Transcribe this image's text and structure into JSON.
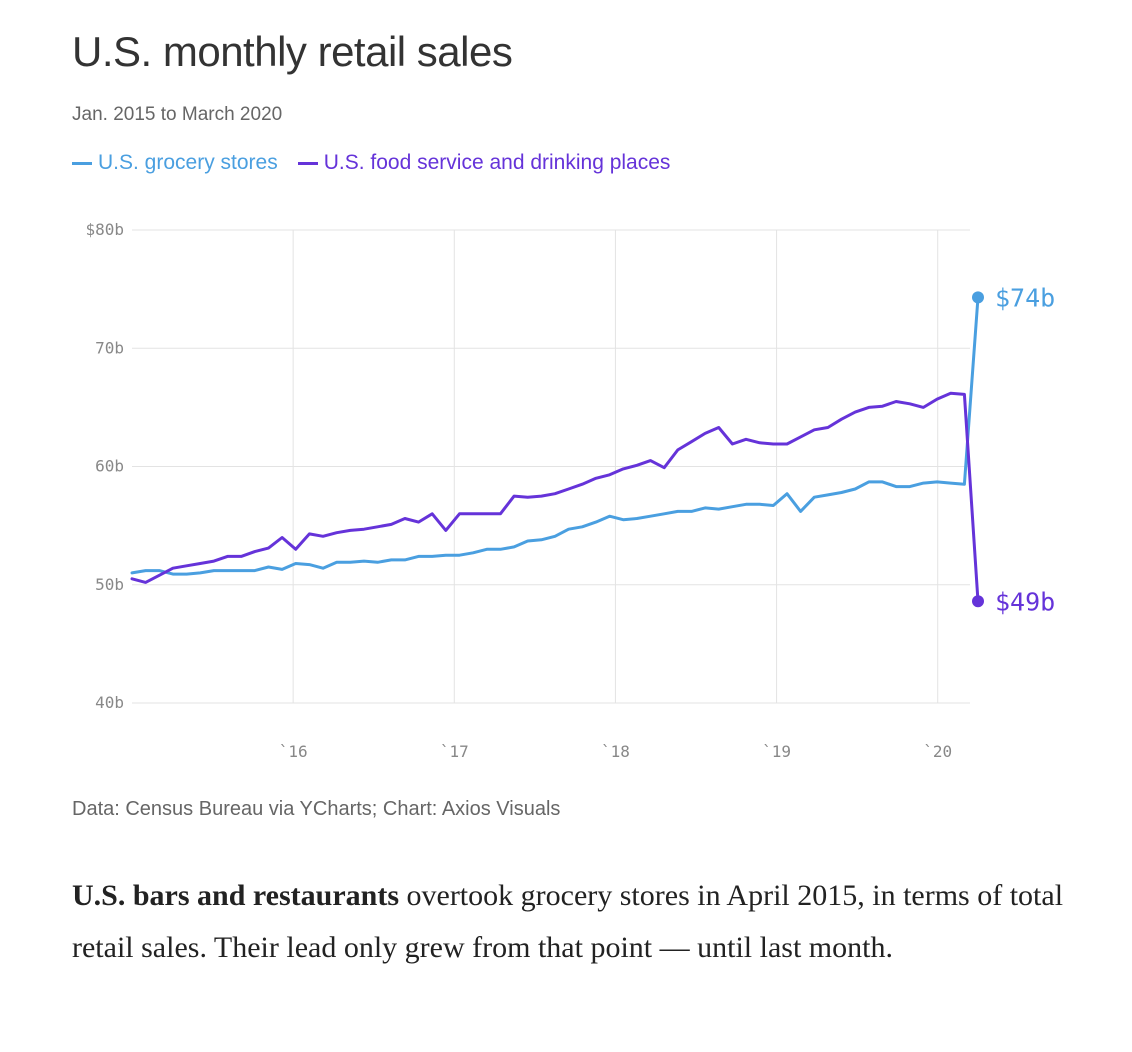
{
  "header": {
    "title": "U.S. monthly retail sales",
    "subtitle": "Jan. 2015 to March 2020"
  },
  "legend": {
    "grocery": "U.S. grocery stores",
    "food": "U.S. food service and drinking places"
  },
  "colors": {
    "grocery": "#4a9fe0",
    "food": "#6533d9",
    "grid": "#e3e3e3",
    "axis_text": "#888888"
  },
  "chart_data": {
    "type": "line",
    "title": "U.S. monthly retail sales",
    "subtitle": "Jan. 2015 to March 2020",
    "xlabel": "",
    "ylabel": "",
    "ylim": [
      40,
      80
    ],
    "xlim": [
      2015.0,
      2020.25
    ],
    "x_ticks": [
      {
        "value": 2016,
        "label": "`16"
      },
      {
        "value": 2017,
        "label": "`17"
      },
      {
        "value": 2018,
        "label": "`18"
      },
      {
        "value": 2019,
        "label": "`19"
      },
      {
        "value": 2020,
        "label": "`20"
      }
    ],
    "y_ticks": [
      {
        "value": 80,
        "label": "$80b"
      },
      {
        "value": 70,
        "label": "70b"
      },
      {
        "value": 60,
        "label": "60b"
      },
      {
        "value": 50,
        "label": "50b"
      },
      {
        "value": 40,
        "label": "40b"
      }
    ],
    "grid": true,
    "start": "Jan 2015",
    "end": "Mar 2020",
    "series": [
      {
        "name": "U.S. grocery stores",
        "color_key": "grocery",
        "end_label": "$74b",
        "values": [
          51.0,
          51.2,
          51.2,
          50.9,
          50.9,
          51.0,
          51.2,
          51.2,
          51.2,
          51.2,
          51.5,
          51.3,
          51.8,
          51.7,
          51.4,
          51.9,
          51.9,
          52.0,
          51.9,
          52.1,
          52.1,
          52.4,
          52.4,
          52.5,
          52.5,
          52.7,
          53.0,
          53.0,
          53.2,
          53.7,
          53.8,
          54.1,
          54.7,
          54.9,
          55.3,
          55.8,
          55.5,
          55.6,
          55.8,
          56.0,
          56.2,
          56.2,
          56.5,
          56.4,
          56.6,
          56.8,
          56.8,
          56.7,
          57.7,
          56.2,
          57.4,
          57.6,
          57.8,
          58.1,
          58.7,
          58.7,
          58.3,
          58.3,
          58.6,
          58.7,
          58.6,
          58.5,
          74.3
        ]
      },
      {
        "name": "U.S. food service and drinking places",
        "color_key": "food",
        "end_label": "$49b",
        "values": [
          50.5,
          50.2,
          50.8,
          51.4,
          51.6,
          51.8,
          52.0,
          52.4,
          52.4,
          52.8,
          53.1,
          54.0,
          53.0,
          54.3,
          54.1,
          54.4,
          54.6,
          54.7,
          54.9,
          55.1,
          55.6,
          55.3,
          56.0,
          54.6,
          56.0,
          56.0,
          56.0,
          56.0,
          57.5,
          57.4,
          57.5,
          57.7,
          58.1,
          58.5,
          59.0,
          59.3,
          59.8,
          60.1,
          60.5,
          59.9,
          61.4,
          62.1,
          62.8,
          63.3,
          61.9,
          62.3,
          62.0,
          61.9,
          61.9,
          62.5,
          63.1,
          63.3,
          64.0,
          64.6,
          65.0,
          65.1,
          65.5,
          65.3,
          65.0,
          65.7,
          66.2,
          66.1,
          48.6
        ]
      }
    ]
  },
  "footer": {
    "source": "Data: Census Bureau via YCharts; Chart: Axios Visuals"
  },
  "body": {
    "bold_lead": "U.S. bars and restaurants",
    "text": " overtook grocery stores in April 2015, in terms of total retail sales. Their lead only grew from that point — until last month."
  }
}
